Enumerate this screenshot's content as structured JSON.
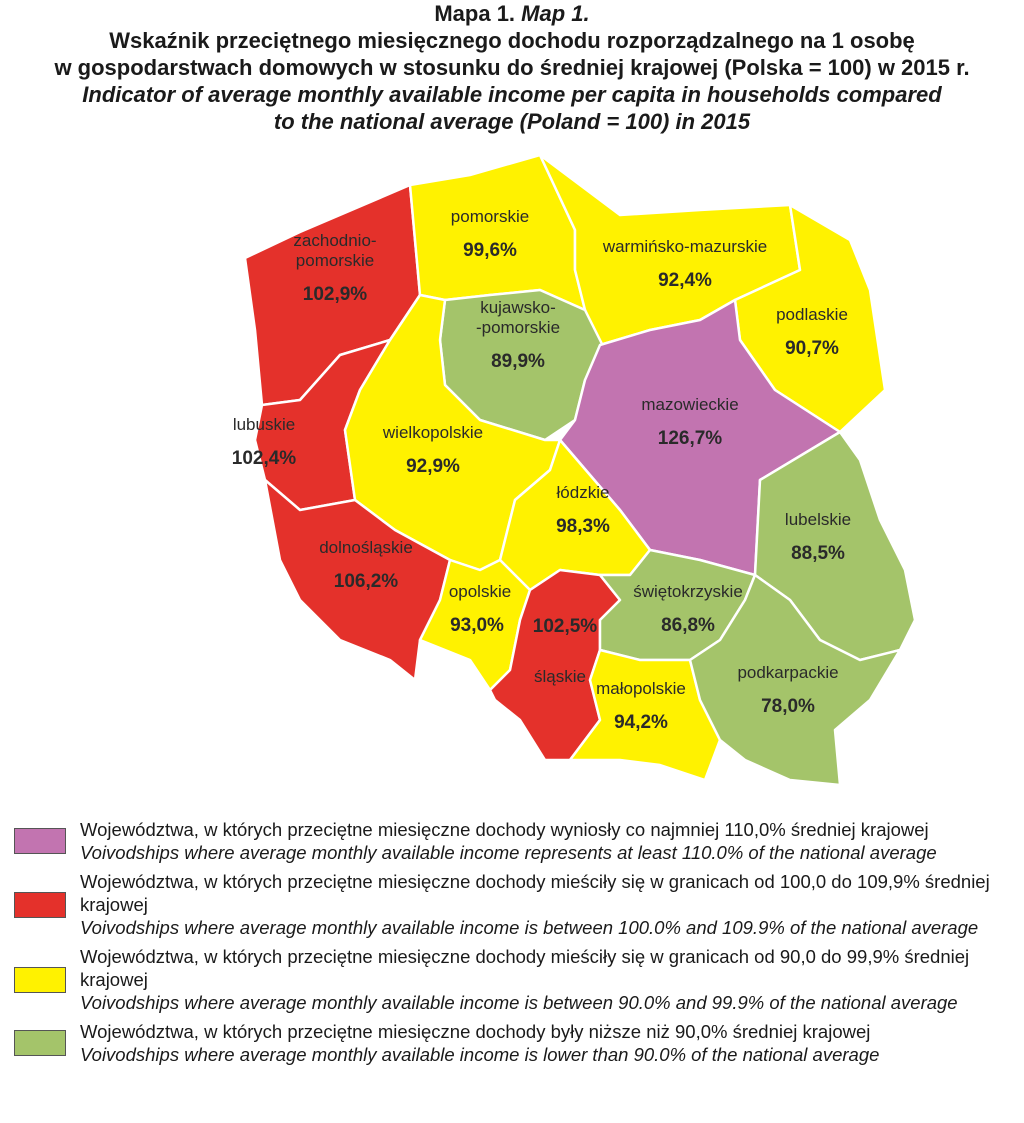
{
  "header": {
    "map_no_pl": "Mapa 1.",
    "map_no_en": "Map 1.",
    "title_pl": [
      "Wskaźnik przeciętnego miesięcznego dochodu rozporządzalnego na 1 osobę",
      "w gospodarstwach domowych w stosunku do średniej krajowej (Polska = 100) w 2015 r."
    ],
    "title_en": [
      "Indicator of average monthly available income per capita in households compared",
      "to the national average (Poland = 100) in 2015"
    ]
  },
  "regions": [
    {
      "name": [
        "zachodnio-",
        "pomorskie"
      ],
      "value": "102,9%",
      "color": "#e4312b"
    },
    {
      "name": [
        "pomorskie"
      ],
      "value": "99,6%",
      "color": "#fff200"
    },
    {
      "name": [
        "warmińsko-mazurskie"
      ],
      "value": "92,4%",
      "color": "#fff200"
    },
    {
      "name": [
        "podlaskie"
      ],
      "value": "90,7%",
      "color": "#fff200"
    },
    {
      "name": [
        "kujawsko-",
        "-pomorskie"
      ],
      "value": "89,9%",
      "color": "#a4c46a"
    },
    {
      "name": [
        "mazowieckie"
      ],
      "value": "126,7%",
      "color": "#c274b0"
    },
    {
      "name": [
        "lubuskie"
      ],
      "value": "102,4%",
      "color": "#e4312b"
    },
    {
      "name": [
        "wielkopolskie"
      ],
      "value": "92,9%",
      "color": "#fff200"
    },
    {
      "name": [
        "łódzkie"
      ],
      "value": "98,3%",
      "color": "#fff200"
    },
    {
      "name": [
        "lubelskie"
      ],
      "value": "88,5%",
      "color": "#a4c46a"
    },
    {
      "name": [
        "dolnośląskie"
      ],
      "value": "106,2%",
      "color": "#e4312b"
    },
    {
      "name": [
        "opolskie"
      ],
      "value": "93,0%",
      "color": "#fff200"
    },
    {
      "name": [
        "śląskie"
      ],
      "value": "102,5%",
      "color": "#e4312b"
    },
    {
      "name": [
        "świętokrzyskie"
      ],
      "value": "86,8%",
      "color": "#a4c46a"
    },
    {
      "name": [
        "małopolskie"
      ],
      "value": "94,2%",
      "color": "#fff200"
    },
    {
      "name": [
        "podkarpackie"
      ],
      "value": "78,0%",
      "color": "#a4c46a"
    }
  ],
  "legend": [
    {
      "color": "#c274b0",
      "pl": "Województwa, w których przeciętne miesięczne dochody wyniosły co najmniej 110,0% średniej krajowej",
      "en": "Voivodships where average monthly available income represents at least 110.0% of the national average"
    },
    {
      "color": "#e4312b",
      "pl": "Województwa, w których przeciętne miesięczne dochody mieściły się w granicach od 100,0 do 109,9% średniej krajowej",
      "en": "Voivodships where average monthly available income is between 100.0% and 109.9% of the national average"
    },
    {
      "color": "#fff200",
      "pl": "Województwa, w których przeciętne miesięczne dochody mieściły się w granicach od 90,0 do 99,9% średniej krajowej",
      "en": "Voivodships where average monthly available income is between 90.0% and 99.9% of the national average"
    },
    {
      "color": "#a4c46a",
      "pl": "Województwa, w których przeciętne miesięczne dochody były niższe niż 90,0% średniej krajowej",
      "en": "Voivodships where average monthly available income is lower than 90.0% of the national average"
    }
  ]
}
